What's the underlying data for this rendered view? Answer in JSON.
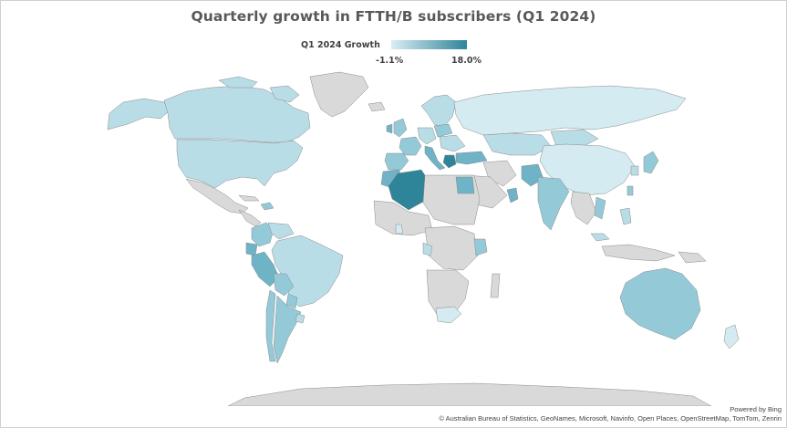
{
  "title": "Quarterly growth in FTTH/B subscribers (Q1 2024)",
  "legend": {
    "label": "Q1 2024 Growth",
    "min_label": "-1.1%",
    "max_label": "18.0%",
    "min_color": "#d9eef4",
    "max_color": "#2e8499"
  },
  "nodata_color": "#d9d9d9",
  "shade_colors": {
    "very_light": "#d4ebf1",
    "light": "#b9dde7",
    "mid": "#94cad8",
    "mid_dark": "#6fb3c6",
    "dark": "#2e8499"
  },
  "attribution": {
    "powered_by": "Powered by Bing",
    "sources": "© Australian Bureau of Statistics, GeoNames, Microsoft, Navinfo, Open Places, OpenStreetMap, TomTom, Zenrin"
  }
}
